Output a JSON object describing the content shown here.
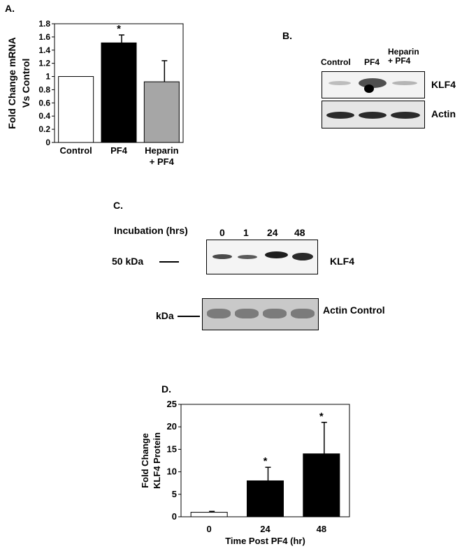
{
  "panels": {
    "a": "A.",
    "b": "B.",
    "c": "C.",
    "d": "D."
  },
  "chart_data": [
    {
      "type": "bar",
      "panel": "A.",
      "categories": [
        "Control",
        "PF4",
        "Heparin\n+ PF4"
      ],
      "values": [
        1.0,
        1.51,
        0.92
      ],
      "errors": [
        0.0,
        0.12,
        0.32
      ],
      "significance": [
        "",
        "*",
        ""
      ],
      "bar_colors": [
        "#ffffff",
        "#000000",
        "#a6a6a6"
      ],
      "ylabel": "Fold Change mRNA\nVs Control",
      "xlabel": "",
      "ylim": [
        0,
        1.8
      ],
      "yticks": [
        "0",
        "0.2",
        "0.4",
        "0.6",
        "0.8",
        "1",
        "1.2",
        "1.4",
        "1.6",
        "1.8"
      ],
      "grid": false
    },
    {
      "type": "bar",
      "panel": "D.",
      "categories": [
        "0",
        "24",
        "48"
      ],
      "values": [
        1.0,
        8.0,
        14.0
      ],
      "errors": [
        0.2,
        3.0,
        7.0
      ],
      "significance": [
        "",
        "*",
        "*"
      ],
      "bar_colors": [
        "#ffffff",
        "#000000",
        "#000000"
      ],
      "ylabel": "Fold Change\nKLF4 Protein",
      "xlabel": "Time Post PF4 (hr)",
      "ylim": [
        0,
        25
      ],
      "yticks": [
        "0",
        "5",
        "10",
        "15",
        "20",
        "25"
      ],
      "grid": false
    }
  ],
  "blot_b": {
    "lanes": [
      "Control",
      "PF4",
      "Heparin\n+ PF4"
    ],
    "rows": [
      "KLF4",
      "Actin"
    ]
  },
  "blot_c": {
    "header": "Incubation (hrs)",
    "lanes": [
      "0",
      "1",
      "24",
      "48"
    ],
    "marker_top": "50 kDa",
    "marker_bottom": "kDa",
    "label_top": "KLF4",
    "label_bottom": "Actin Control"
  }
}
